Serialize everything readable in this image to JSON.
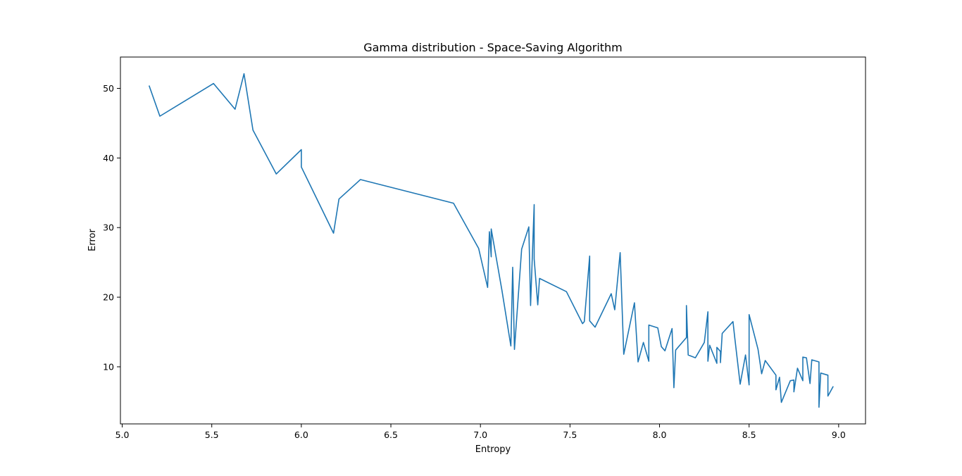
{
  "chart_data": {
    "type": "line",
    "title": "Gamma distribution - Space-Saving Algorithm",
    "xlabel": "Entropy",
    "ylabel": "Error",
    "xlim": [
      4.99,
      9.15
    ],
    "ylim": [
      1.8,
      54.5
    ],
    "xticks": [
      "5.0",
      "5.5",
      "6.0",
      "6.5",
      "7.0",
      "7.5",
      "8.0",
      "8.5",
      "9.0"
    ],
    "yticks": [
      "10",
      "20",
      "30",
      "40",
      "50"
    ],
    "grid": false,
    "legend": "none",
    "series": [
      {
        "color": "#1f77b4",
        "points": [
          [
            5.15,
            50.4
          ],
          [
            5.21,
            46.0
          ],
          [
            5.51,
            50.7
          ],
          [
            5.63,
            47.0
          ],
          [
            5.68,
            52.1
          ],
          [
            5.73,
            44.0
          ],
          [
            5.86,
            37.7
          ],
          [
            6.0,
            41.2
          ],
          [
            6.0,
            38.7
          ],
          [
            6.18,
            29.2
          ],
          [
            6.21,
            34.1
          ],
          [
            6.33,
            36.9
          ],
          [
            6.85,
            33.5
          ],
          [
            6.99,
            27.0
          ],
          [
            7.04,
            21.4
          ],
          [
            7.05,
            29.4
          ],
          [
            7.06,
            25.8
          ],
          [
            7.06,
            29.8
          ],
          [
            7.12,
            21.0
          ],
          [
            7.17,
            13.0
          ],
          [
            7.18,
            24.3
          ],
          [
            7.19,
            12.5
          ],
          [
            7.23,
            26.9
          ],
          [
            7.27,
            30.1
          ],
          [
            7.28,
            18.8
          ],
          [
            7.3,
            33.3
          ],
          [
            7.3,
            25.5
          ],
          [
            7.32,
            18.9
          ],
          [
            7.33,
            22.7
          ],
          [
            7.48,
            20.8
          ],
          [
            7.57,
            16.2
          ],
          [
            7.58,
            16.5
          ],
          [
            7.61,
            25.9
          ],
          [
            7.61,
            16.6
          ],
          [
            7.64,
            15.7
          ],
          [
            7.73,
            20.5
          ],
          [
            7.75,
            18.2
          ],
          [
            7.78,
            26.4
          ],
          [
            7.8,
            11.8
          ],
          [
            7.86,
            19.2
          ],
          [
            7.88,
            10.7
          ],
          [
            7.91,
            13.5
          ],
          [
            7.94,
            10.8
          ],
          [
            7.94,
            16.0
          ],
          [
            7.99,
            15.6
          ],
          [
            8.01,
            12.9
          ],
          [
            8.03,
            12.3
          ],
          [
            8.07,
            15.5
          ],
          [
            8.08,
            7.0
          ],
          [
            8.09,
            12.4
          ],
          [
            8.15,
            14.2
          ],
          [
            8.15,
            18.8
          ],
          [
            8.16,
            11.7
          ],
          [
            8.2,
            11.3
          ],
          [
            8.25,
            13.5
          ],
          [
            8.27,
            17.9
          ],
          [
            8.27,
            10.8
          ],
          [
            8.28,
            13.1
          ],
          [
            8.32,
            10.5
          ],
          [
            8.32,
            12.8
          ],
          [
            8.34,
            12.2
          ],
          [
            8.34,
            10.6
          ],
          [
            8.35,
            14.8
          ],
          [
            8.41,
            16.5
          ],
          [
            8.42,
            14.2
          ],
          [
            8.45,
            7.5
          ],
          [
            8.48,
            11.7
          ],
          [
            8.5,
            7.4
          ],
          [
            8.5,
            17.5
          ],
          [
            8.55,
            12.5
          ],
          [
            8.57,
            9.0
          ],
          [
            8.59,
            10.9
          ],
          [
            8.65,
            8.8
          ],
          [
            8.65,
            6.7
          ],
          [
            8.67,
            8.5
          ],
          [
            8.68,
            4.9
          ],
          [
            8.73,
            8.0
          ],
          [
            8.75,
            8.1
          ],
          [
            8.75,
            6.4
          ],
          [
            8.77,
            9.8
          ],
          [
            8.8,
            8.0
          ],
          [
            8.8,
            11.4
          ],
          [
            8.82,
            11.3
          ],
          [
            8.84,
            7.6
          ],
          [
            8.85,
            11.0
          ],
          [
            8.89,
            10.7
          ],
          [
            8.89,
            4.2
          ],
          [
            8.9,
            9.1
          ],
          [
            8.94,
            8.8
          ],
          [
            8.94,
            5.8
          ],
          [
            8.97,
            7.2
          ]
        ]
      }
    ]
  }
}
